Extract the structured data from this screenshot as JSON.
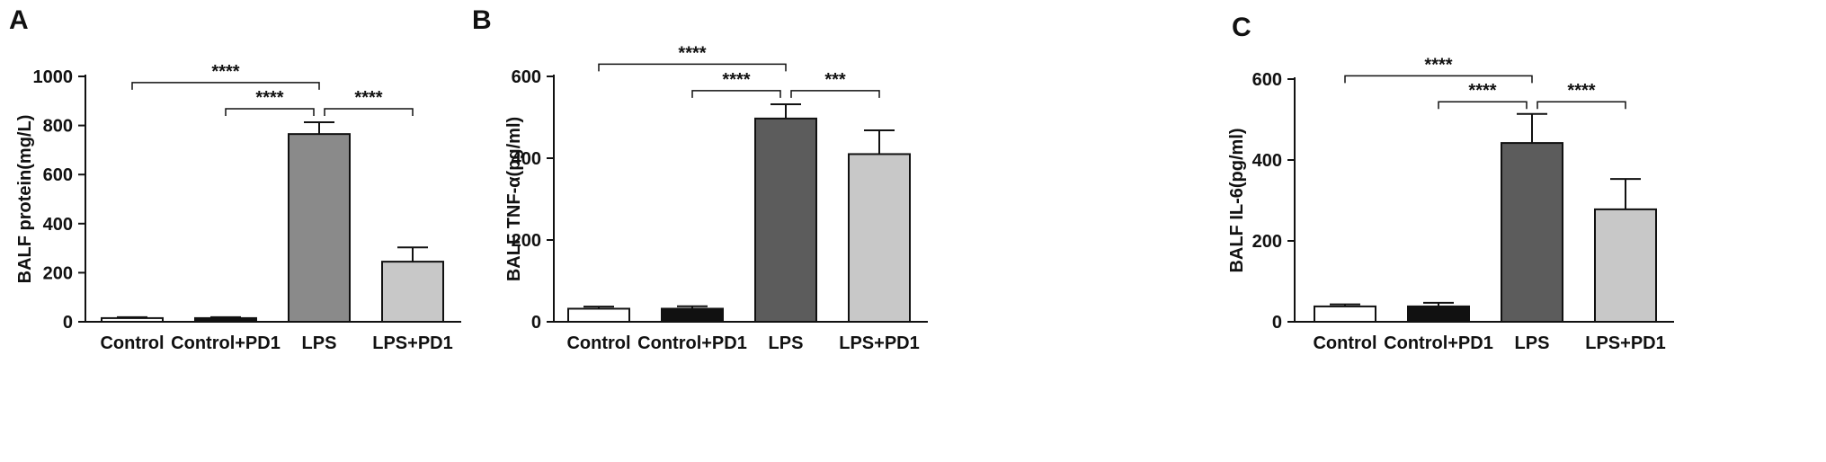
{
  "chart_data": [
    {
      "panel": "A",
      "type": "bar",
      "ylabel": "BALF protein(mg/L)",
      "ylim": [
        0,
        1000
      ],
      "yticks": [
        0,
        200,
        400,
        600,
        800,
        1000
      ],
      "categories": [
        "Control",
        "Control+PD1",
        "LPS",
        "LPS+PD1"
      ],
      "values": [
        15,
        15,
        765,
        245
      ],
      "errors": [
        4,
        4,
        48,
        58
      ],
      "colors": [
        "#ffffff",
        "#111111",
        "#8a8a8a",
        "#c8c8c8"
      ],
      "significance": [
        {
          "from": 0,
          "to": 2,
          "label": "****",
          "level": 975
        },
        {
          "from": 1,
          "to": 2,
          "label": "****",
          "level": 868
        },
        {
          "from": 2,
          "to": 3,
          "label": "****",
          "level": 868
        }
      ]
    },
    {
      "panel": "B",
      "type": "bar",
      "ylabel": "BALF TNF-α(pg/ml)",
      "ylim": [
        0,
        600
      ],
      "yticks": [
        0,
        200,
        400,
        600
      ],
      "categories": [
        "Control",
        "Control+PD1",
        "LPS",
        "LPS+PD1"
      ],
      "values": [
        32,
        32,
        497,
        410
      ],
      "errors": [
        5,
        6,
        35,
        58
      ],
      "colors": [
        "#ffffff",
        "#111111",
        "#5c5c5c",
        "#c8c8c8"
      ],
      "significance": [
        {
          "from": 0,
          "to": 2,
          "label": "****",
          "level": 630
        },
        {
          "from": 1,
          "to": 2,
          "label": "****",
          "level": 565
        },
        {
          "from": 2,
          "to": 3,
          "label": "***",
          "level": 565
        }
      ]
    },
    {
      "panel": "C",
      "type": "bar",
      "ylabel": "BALF IL-6(pg/ml)",
      "ylim": [
        0,
        600
      ],
      "yticks": [
        0,
        200,
        400,
        600
      ],
      "categories": [
        "Control",
        "Control+PD1",
        "LPS",
        "LPS+PD1"
      ],
      "values": [
        38,
        38,
        442,
        278
      ],
      "errors": [
        5,
        9,
        72,
        75
      ],
      "colors": [
        "#ffffff",
        "#111111",
        "#5c5c5c",
        "#c8c8c8"
      ],
      "significance": [
        {
          "from": 0,
          "to": 2,
          "label": "****",
          "level": 608
        },
        {
          "from": 1,
          "to": 2,
          "label": "****",
          "level": 544
        },
        {
          "from": 2,
          "to": 3,
          "label": "****",
          "level": 544
        }
      ]
    }
  ]
}
